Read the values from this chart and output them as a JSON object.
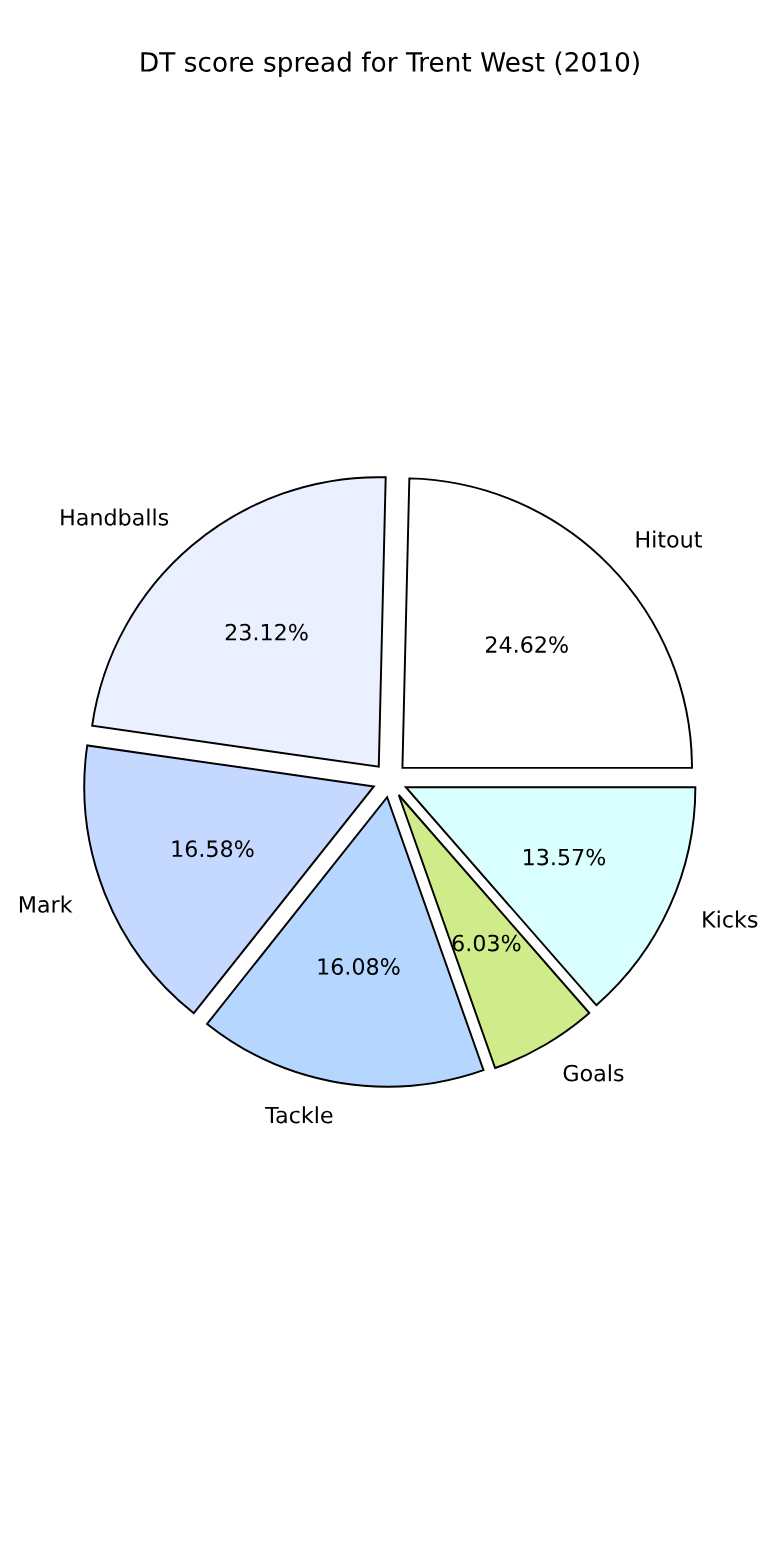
{
  "chart_data": {
    "type": "pie",
    "title": "DT score spread for Trent West (2010)",
    "categories": [
      "Hitout",
      "Handballs",
      "Mark",
      "Tackle",
      "Goals",
      "Kicks"
    ],
    "values": [
      24.62,
      23.12,
      16.58,
      16.08,
      6.03,
      13.57
    ],
    "value_labels": [
      "24.62%",
      "23.12%",
      "16.58%",
      "16.08%",
      "6.03%",
      "13.57%"
    ],
    "colors": [
      "#ffffff",
      "#eaf0ff",
      "#c5d8ff",
      "#b5d7ff",
      "#d0eb8a",
      "#d9ffff"
    ]
  }
}
